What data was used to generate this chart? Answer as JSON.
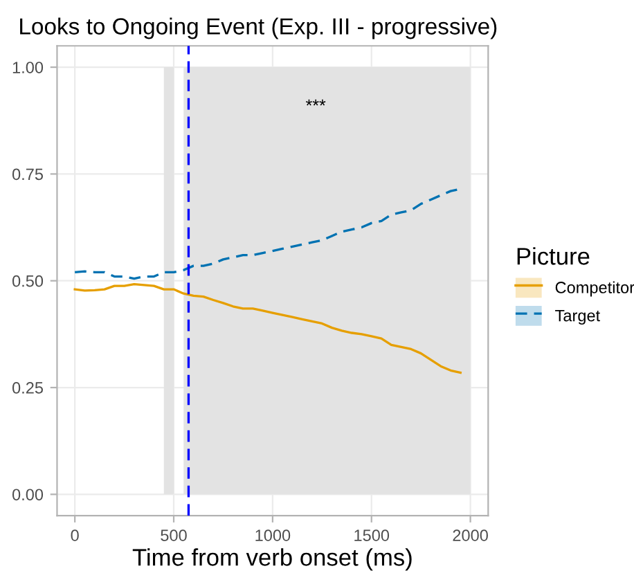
{
  "chart_data": {
    "type": "line",
    "title": "Looks to Ongoing Event (Exp. III - progressive)",
    "xlabel": "Time from verb onset (ms)",
    "legend_title": "Picture",
    "x": [
      0,
      50,
      100,
      150,
      200,
      250,
      300,
      350,
      400,
      450,
      500,
      550,
      600,
      650,
      700,
      750,
      800,
      850,
      900,
      950,
      1000,
      1050,
      1100,
      1150,
      1200,
      1250,
      1300,
      1350,
      1400,
      1450,
      1500,
      1550,
      1600,
      1650,
      1700,
      1750,
      1800,
      1850,
      1900,
      1950
    ],
    "series": [
      {
        "name": "Competitor",
        "color": "#e69f00",
        "line_style": "solid",
        "values": [
          0.48,
          0.477,
          0.478,
          0.48,
          0.488,
          0.488,
          0.492,
          0.49,
          0.488,
          0.48,
          0.48,
          0.47,
          0.465,
          0.463,
          0.455,
          0.448,
          0.44,
          0.435,
          0.435,
          0.43,
          0.425,
          0.42,
          0.415,
          0.41,
          0.405,
          0.4,
          0.39,
          0.383,
          0.378,
          0.375,
          0.37,
          0.365,
          0.35,
          0.345,
          0.34,
          0.33,
          0.315,
          0.3,
          0.29,
          0.285
        ]
      },
      {
        "name": "Target",
        "color": "#0072b2",
        "line_style": "dashed",
        "values": [
          0.52,
          0.522,
          0.52,
          0.52,
          0.51,
          0.51,
          0.505,
          0.51,
          0.51,
          0.52,
          0.52,
          0.525,
          0.535,
          0.535,
          0.54,
          0.55,
          0.555,
          0.56,
          0.56,
          0.565,
          0.57,
          0.575,
          0.58,
          0.585,
          0.59,
          0.595,
          0.605,
          0.615,
          0.62,
          0.625,
          0.635,
          0.64,
          0.655,
          0.66,
          0.665,
          0.68,
          0.69,
          0.7,
          0.71,
          0.715
        ]
      }
    ],
    "xlim": [
      -90,
      2090
    ],
    "xticks": [
      0,
      500,
      1000,
      1500,
      2000
    ],
    "ylim": [
      -0.05,
      1.05
    ],
    "yticks": [
      {
        "value": 0,
        "label": "0.00"
      },
      {
        "value": 0.25,
        "label": "0.25"
      },
      {
        "value": 0.5,
        "label": "0.50"
      },
      {
        "value": 0.75,
        "label": "0.75"
      },
      {
        "value": 1,
        "label": "1.00"
      }
    ],
    "ref_lines": [
      {
        "axis": "x",
        "value": 575,
        "color": "#0000ff",
        "line_style": "dashed"
      }
    ],
    "bands": [
      {
        "axis": "x",
        "from": 450,
        "to": 500,
        "color": "#e3e3e3"
      },
      {
        "axis": "x",
        "from": 550,
        "to": 2000,
        "color": "#e3e3e3"
      }
    ],
    "annotations": [
      "***"
    ],
    "grid": true,
    "legend": "right"
  }
}
